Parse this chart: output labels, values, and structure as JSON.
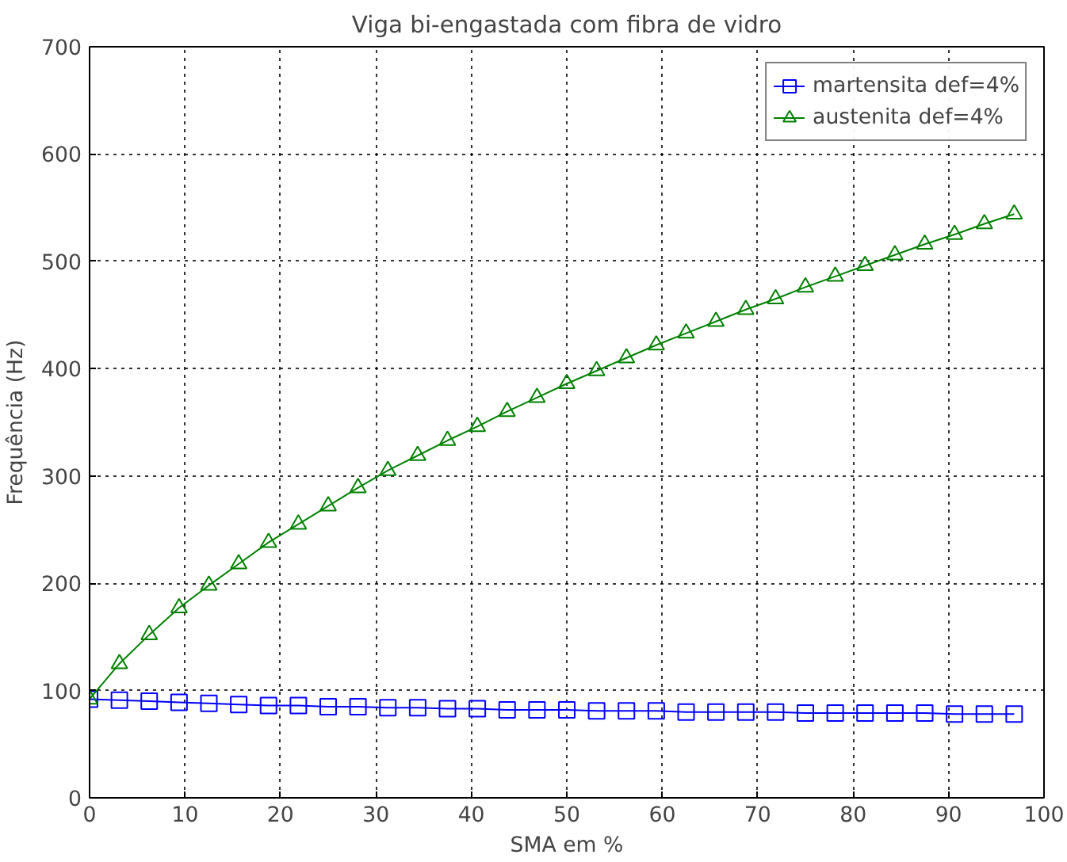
{
  "chart_data": {
    "type": "line",
    "title": "Viga bi-engastada com fibra de vidro",
    "xlabel": "SMA em %",
    "ylabel": "Frequência (Hz)",
    "x": [
      0,
      3.125,
      6.25,
      9.375,
      12.5,
      15.625,
      18.75,
      21.875,
      25,
      28.125,
      31.25,
      34.375,
      37.5,
      40.625,
      43.75,
      46.875,
      50,
      53.125,
      56.25,
      59.375,
      62.5,
      65.625,
      68.75,
      71.875,
      75,
      78.125,
      81.25,
      84.375,
      87.5,
      90.625,
      93.75,
      96.875
    ],
    "series": [
      {
        "name": "martensita def=4%",
        "color": "#0000ff",
        "marker": "square",
        "values": [
          92,
          91,
          90,
          89,
          88,
          87,
          86,
          86,
          85,
          85,
          84,
          84,
          83,
          83,
          82,
          82,
          82,
          81,
          81,
          81,
          80,
          80,
          80,
          80,
          79,
          79,
          79,
          79,
          79,
          78,
          78,
          78
        ]
      },
      {
        "name": "austenita def=4%",
        "color": "#008000",
        "marker": "triangle",
        "values": [
          92,
          125,
          152,
          177,
          198,
          218,
          238,
          255,
          272,
          289,
          305,
          319,
          333,
          346,
          360,
          373,
          386,
          398,
          410,
          422,
          433,
          444,
          455,
          465,
          476,
          486,
          496,
          506,
          516,
          525,
          535,
          544
        ]
      }
    ],
    "xlim": [
      0,
      100
    ],
    "ylim": [
      0,
      700
    ],
    "xticks": [
      0,
      10,
      20,
      30,
      40,
      50,
      60,
      70,
      80,
      90,
      100
    ],
    "yticks": [
      0,
      100,
      200,
      300,
      400,
      500,
      600,
      700
    ],
    "grid": true,
    "legend": "top right",
    "line_style": "solid"
  }
}
